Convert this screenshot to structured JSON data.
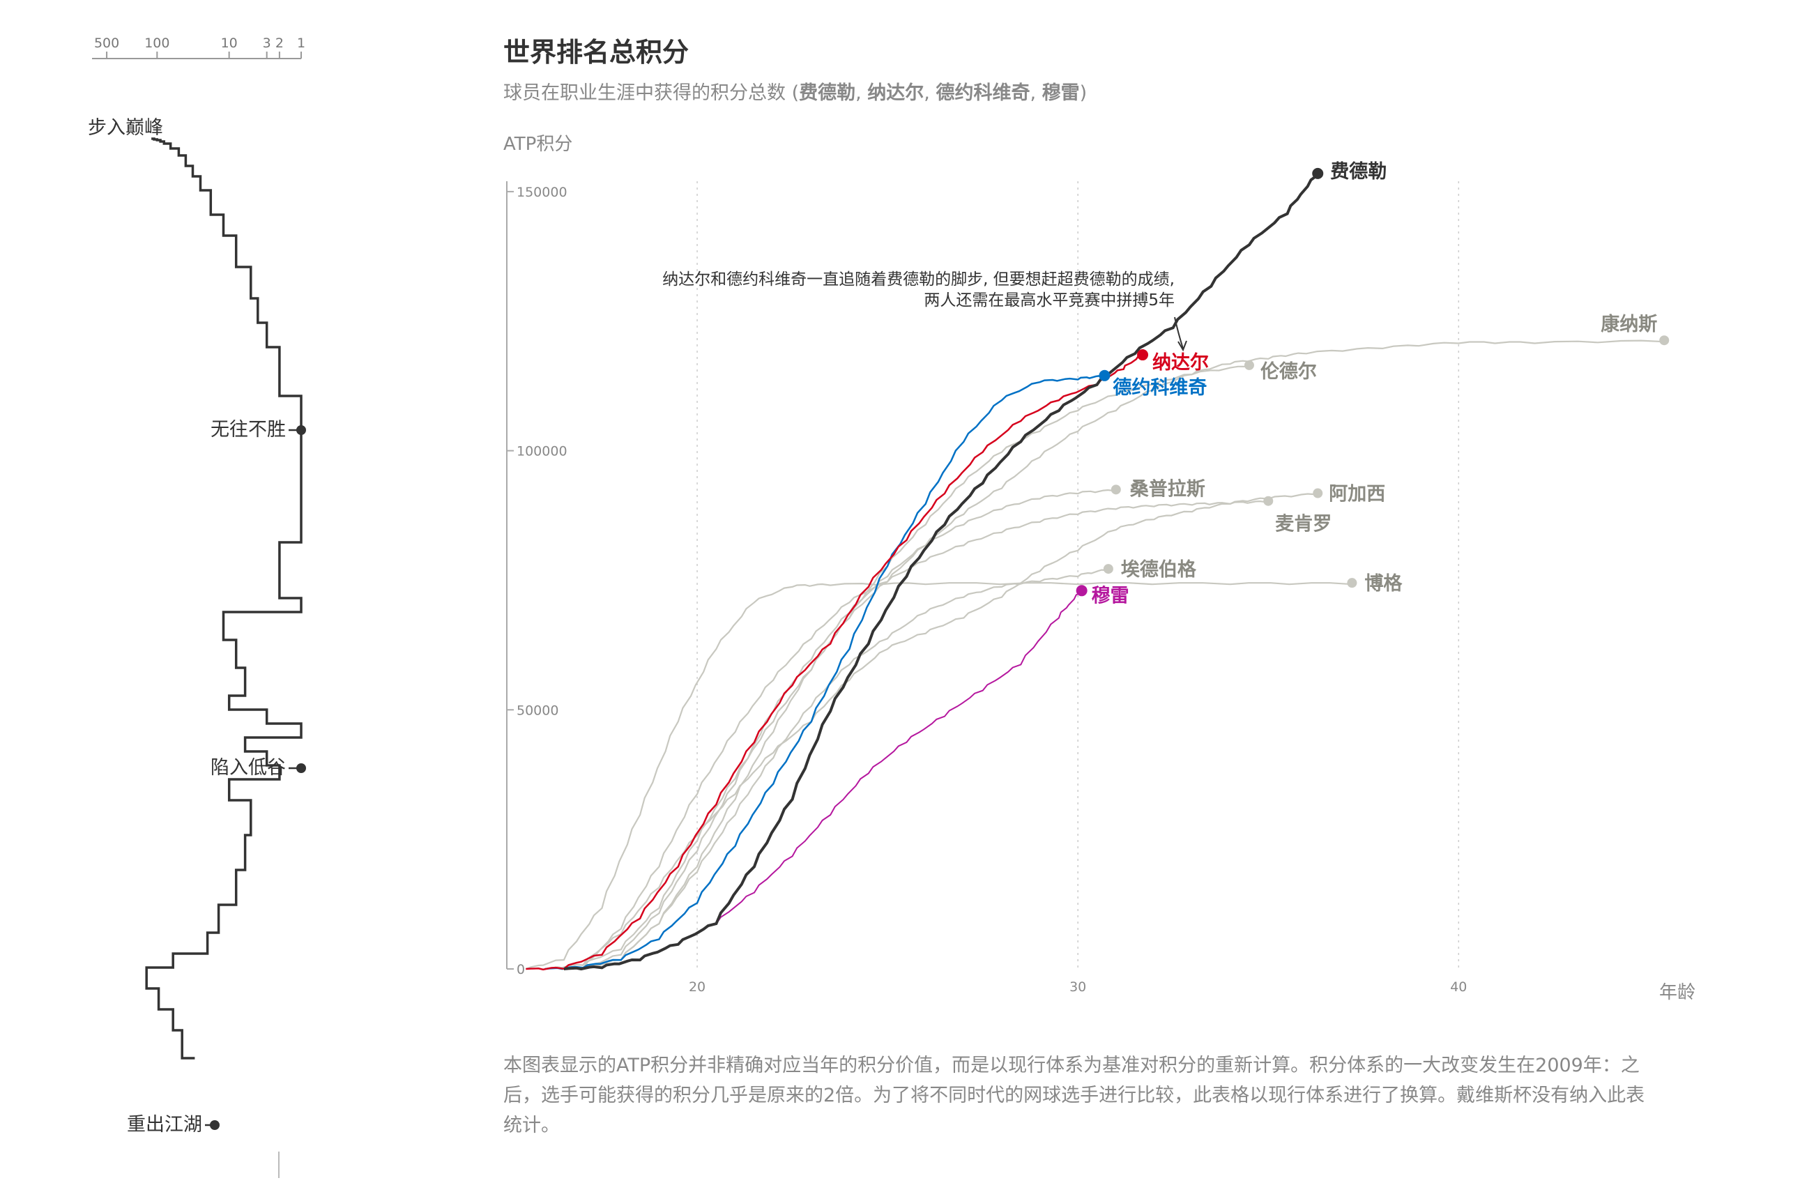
{
  "header": {
    "title": "世界排名总积分",
    "subtitle_prefix": "球员在职业生涯中获得的积分总数 (",
    "subtitle_names": [
      {
        "text": "费德勒",
        "color": "#333333"
      },
      {
        "text": "纳达尔",
        "color": "#d6001c"
      },
      {
        "text": "德约科维奇",
        "color": "#0071c5"
      },
      {
        "text": "穆雷",
        "color": "#b5179e"
      }
    ],
    "subtitle_sep": ", ",
    "subtitle_suffix": ")"
  },
  "rank_axis": {
    "ticks": [
      "500",
      "100",
      "10",
      "3",
      "2",
      "1"
    ],
    "tick_values": [
      500,
      100,
      10,
      3,
      2,
      1
    ],
    "scale": "log-reversed",
    "phases": [
      "步入巅峰",
      "无往不胜",
      "陷入低谷",
      "重出江湖"
    ]
  },
  "annotation": {
    "line1": "纳达尔和德约科维奇一直追随着费德勒的脚步, 但要想赶超费德勒的成绩,",
    "line2": "两人还需在最高水平竞赛中拼搏5年"
  },
  "footnote": {
    "line1": "本图表显示的ATP积分并非精确对应当年的积分价值，而是以现行体系为基准对积分的重新计算。积分体系的一大改变发生在2009年：之",
    "line2": "后，选手可能获得的积分几乎是原来的2倍。为了将不同时代的网球选手进行比较，此表格以现行体系进行了换算。戴维斯杯没有纳入此表",
    "line3": "统计。"
  },
  "colors": {
    "federer": "#333333",
    "nadal": "#d6001c",
    "djokovic": "#0071c5",
    "murray": "#b5179e",
    "others": "#c8c8c0",
    "others_label": "#8a8a82"
  },
  "chart_data": {
    "type": "line",
    "title": "世界排名总积分",
    "ylabel": "ATP积分",
    "xlabel": "年龄",
    "xlim": [
      15,
      46
    ],
    "ylim": [
      0,
      152000
    ],
    "x_ticks": [
      "20",
      "30",
      "40"
    ],
    "x_tick_values": [
      20,
      30,
      40
    ],
    "y_ticks": [
      "0",
      "50000",
      "100000",
      "150000"
    ],
    "y_tick_values": [
      0,
      50000,
      100000,
      150000
    ],
    "grid": "vertical-dotted",
    "highlighted": [
      {
        "name": "费德勒",
        "color": "#333333",
        "width": 4,
        "points": [
          [
            16.5,
            0
          ],
          [
            17.5,
            500
          ],
          [
            18.5,
            2000
          ],
          [
            19.5,
            5000
          ],
          [
            20.5,
            9000
          ],
          [
            21.5,
            20000
          ],
          [
            22.5,
            33000
          ],
          [
            23.5,
            50000
          ],
          [
            24.5,
            63000
          ],
          [
            25.5,
            76000
          ],
          [
            26.5,
            86000
          ],
          [
            27.5,
            94000
          ],
          [
            28.5,
            102000
          ],
          [
            29.5,
            108000
          ],
          [
            30.5,
            113000
          ],
          [
            31.5,
            119000
          ],
          [
            32.5,
            124000
          ],
          [
            33.5,
            132000
          ],
          [
            34.5,
            140000
          ],
          [
            35.5,
            146000
          ],
          [
            36.3,
            153500
          ]
        ]
      },
      {
        "name": "纳达尔",
        "color": "#d6001c",
        "width": 2.5,
        "points": [
          [
            15.5,
            0
          ],
          [
            16.5,
            300
          ],
          [
            17.5,
            3000
          ],
          [
            18.5,
            10000
          ],
          [
            19.5,
            20000
          ],
          [
            20.5,
            32000
          ],
          [
            21.5,
            44000
          ],
          [
            22.5,
            55000
          ],
          [
            23.5,
            63000
          ],
          [
            24.5,
            74000
          ],
          [
            25.5,
            83000
          ],
          [
            26.5,
            92000
          ],
          [
            27.5,
            100000
          ],
          [
            28.5,
            106000
          ],
          [
            29.5,
            110000
          ],
          [
            30.5,
            113000
          ],
          [
            31.2,
            116000
          ],
          [
            31.7,
            118500
          ]
        ]
      },
      {
        "name": "德约科维奇",
        "color": "#0071c5",
        "width": 2.5,
        "points": [
          [
            16,
            0
          ],
          [
            17,
            500
          ],
          [
            18,
            2000
          ],
          [
            19,
            6000
          ],
          [
            20,
            13000
          ],
          [
            21,
            24000
          ],
          [
            22,
            36000
          ],
          [
            23,
            48000
          ],
          [
            24,
            62000
          ],
          [
            25,
            78000
          ],
          [
            26,
            90000
          ],
          [
            27,
            102000
          ],
          [
            28,
            110000
          ],
          [
            29,
            113500
          ],
          [
            30,
            114000
          ],
          [
            30.7,
            114500
          ]
        ]
      },
      {
        "name": "穆雷",
        "color": "#b5179e",
        "width": 2,
        "points": [
          [
            16.5,
            0
          ],
          [
            17.5,
            500
          ],
          [
            18.5,
            2000
          ],
          [
            19.5,
            5000
          ],
          [
            20.5,
            9000
          ],
          [
            21.5,
            15000
          ],
          [
            22.5,
            22000
          ],
          [
            23.5,
            30000
          ],
          [
            24.5,
            38000
          ],
          [
            25.5,
            44000
          ],
          [
            26.5,
            49000
          ],
          [
            27.5,
            54000
          ],
          [
            28.5,
            59000
          ],
          [
            29.5,
            68000
          ],
          [
            30.1,
            73000
          ]
        ]
      }
    ],
    "others": [
      {
        "name": "康纳斯",
        "points": [
          [
            16,
            0
          ],
          [
            17,
            1000
          ],
          [
            18,
            4000
          ],
          [
            19,
            12000
          ],
          [
            20,
            25000
          ],
          [
            21,
            37000
          ],
          [
            22,
            48000
          ],
          [
            23,
            58000
          ],
          [
            24,
            68000
          ],
          [
            25,
            75000
          ],
          [
            26,
            82000
          ],
          [
            27,
            88000
          ],
          [
            28,
            93000
          ],
          [
            29,
            99000
          ],
          [
            30,
            104000
          ],
          [
            31,
            108000
          ],
          [
            32,
            112000
          ],
          [
            33,
            115000
          ],
          [
            34,
            117000
          ],
          [
            35,
            118000
          ],
          [
            36,
            119000
          ],
          [
            38,
            120000
          ],
          [
            40,
            121000
          ],
          [
            42,
            121000
          ],
          [
            45.4,
            121300
          ]
        ]
      },
      {
        "name": "伦德尔",
        "points": [
          [
            17,
            0
          ],
          [
            18,
            2000
          ],
          [
            19,
            9000
          ],
          [
            20,
            20000
          ],
          [
            21,
            33000
          ],
          [
            22,
            46000
          ],
          [
            23,
            58000
          ],
          [
            24,
            68000
          ],
          [
            25,
            78000
          ],
          [
            26,
            86000
          ],
          [
            27,
            94000
          ],
          [
            28,
            100000
          ],
          [
            29,
            104000
          ],
          [
            30,
            108000
          ],
          [
            31,
            111000
          ],
          [
            32,
            113000
          ],
          [
            33,
            115000
          ],
          [
            34.5,
            116500
          ]
        ]
      },
      {
        "name": "桑普拉斯",
        "points": [
          [
            17,
            0
          ],
          [
            18,
            3000
          ],
          [
            19,
            11000
          ],
          [
            20,
            23000
          ],
          [
            21,
            36000
          ],
          [
            22,
            50000
          ],
          [
            23,
            60000
          ],
          [
            24,
            69000
          ],
          [
            25,
            76000
          ],
          [
            26,
            82000
          ],
          [
            27,
            86000
          ],
          [
            28,
            89000
          ],
          [
            29,
            91000
          ],
          [
            30,
            92000
          ],
          [
            31,
            92500
          ]
        ]
      },
      {
        "name": "阿加西",
        "points": [
          [
            16,
            0
          ],
          [
            17,
            1000
          ],
          [
            18,
            7000
          ],
          [
            19,
            16000
          ],
          [
            20,
            26000
          ],
          [
            21,
            34000
          ],
          [
            22,
            42000
          ],
          [
            23,
            48000
          ],
          [
            24,
            56000
          ],
          [
            25,
            62000
          ],
          [
            26,
            65000
          ],
          [
            27,
            68000
          ],
          [
            28,
            72000
          ],
          [
            29,
            77000
          ],
          [
            30,
            81000
          ],
          [
            31,
            85000
          ],
          [
            32,
            87000
          ],
          [
            33,
            88500
          ],
          [
            34,
            90000
          ],
          [
            35,
            91000
          ],
          [
            36.3,
            91800
          ]
        ]
      },
      {
        "name": "麦肯罗",
        "points": [
          [
            17,
            0
          ],
          [
            18,
            8000
          ],
          [
            19,
            20000
          ],
          [
            20,
            34000
          ],
          [
            21,
            46000
          ],
          [
            22,
            56000
          ],
          [
            23,
            64000
          ],
          [
            24,
            71000
          ],
          [
            25,
            75000
          ],
          [
            26,
            79000
          ],
          [
            27,
            82000
          ],
          [
            28,
            84500
          ],
          [
            29,
            86500
          ],
          [
            30,
            88000
          ],
          [
            31,
            89000
          ],
          [
            32,
            89500
          ],
          [
            33,
            89800
          ],
          [
            34,
            90000
          ],
          [
            35,
            90300
          ]
        ]
      },
      {
        "name": "埃德伯格",
        "points": [
          [
            17,
            0
          ],
          [
            18,
            2000
          ],
          [
            19,
            9000
          ],
          [
            20,
            19000
          ],
          [
            21,
            30000
          ],
          [
            22,
            41000
          ],
          [
            23,
            51000
          ],
          [
            24,
            59000
          ],
          [
            25,
            64000
          ],
          [
            26,
            69000
          ],
          [
            27,
            72000
          ],
          [
            28,
            74000
          ],
          [
            29,
            75000
          ],
          [
            30,
            76000
          ],
          [
            30.8,
            77200
          ]
        ]
      },
      {
        "name": "博格",
        "points": [
          [
            15.5,
            0
          ],
          [
            16.5,
            2000
          ],
          [
            17.5,
            12000
          ],
          [
            18.5,
            30000
          ],
          [
            19.5,
            48000
          ],
          [
            20.5,
            62000
          ],
          [
            21.5,
            71000
          ],
          [
            22.5,
            74000
          ],
          [
            23.5,
            74300
          ],
          [
            26,
            74500
          ],
          [
            30,
            74500
          ],
          [
            34,
            74500
          ],
          [
            37.2,
            74500
          ]
        ]
      }
    ],
    "rank_profile": [
      [
        120,
        1
      ],
      [
        110,
        1
      ],
      [
        100,
        2
      ],
      [
        90,
        3
      ],
      [
        80,
        5
      ],
      [
        65,
        8
      ],
      [
        50,
        15
      ],
      [
        40,
        25
      ],
      [
        32,
        40
      ],
      [
        25,
        55
      ],
      [
        18,
        75
      ],
      [
        12,
        110
      ],
      [
        8,
        140
      ],
      [
        5,
        185
      ],
      [
        4,
        230
      ],
      [
        3,
        265
      ],
      [
        2,
        300
      ],
      [
        2,
        320
      ],
      [
        1,
        370
      ],
      [
        1,
        580
      ],
      [
        2,
        580
      ],
      [
        2,
        660
      ],
      [
        1,
        660
      ],
      [
        12,
        680
      ],
      [
        8,
        720
      ],
      [
        6,
        760
      ],
      [
        10,
        800
      ],
      [
        3,
        820
      ],
      [
        1,
        840
      ],
      [
        6,
        860
      ],
      [
        3,
        880
      ],
      [
        2,
        900
      ],
      [
        10,
        920
      ],
      [
        5,
        950
      ],
      [
        6,
        1000
      ],
      [
        8,
        1050
      ],
      [
        14,
        1100
      ],
      [
        20,
        1140
      ],
      [
        60,
        1170
      ],
      [
        140,
        1190
      ],
      [
        95,
        1220
      ],
      [
        60,
        1250
      ],
      [
        45,
        1280
      ],
      [
        30,
        1320
      ]
    ],
    "rank_phase_points": [
      {
        "label": "步入巅峰",
        "rank": 150,
        "y": 110
      },
      {
        "label": "无往不胜",
        "rank": 1,
        "y": 370
      },
      {
        "label": "陷入低谷",
        "rank": 1,
        "y": 663
      },
      {
        "label": "重出江湖",
        "rank": 150,
        "y": 970
      }
    ]
  }
}
